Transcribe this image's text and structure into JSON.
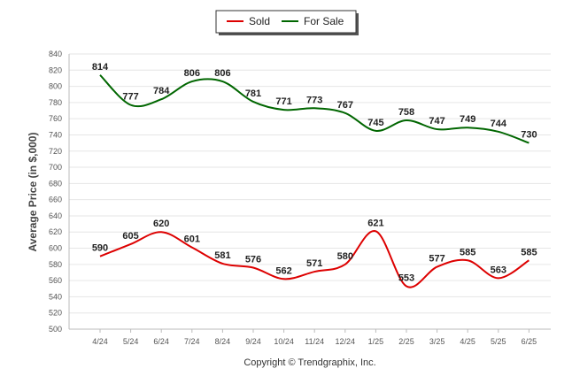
{
  "chart_data": {
    "type": "line",
    "title": "",
    "xlabel": "",
    "ylabel": "Average Price (in $,000)",
    "categories": [
      "4/24",
      "5/24",
      "6/24",
      "7/24",
      "8/24",
      "9/24",
      "10/24",
      "11/24",
      "12/24",
      "1/25",
      "2/25",
      "3/25",
      "4/25",
      "5/25",
      "6/25"
    ],
    "ylim": [
      500,
      840
    ],
    "ytick_step": 20,
    "grid": true,
    "legend_position": "top-center",
    "series": [
      {
        "name": "Sold",
        "color": "#dd0000",
        "values": [
          590,
          605,
          620,
          601,
          581,
          576,
          562,
          571,
          580,
          621,
          553,
          577,
          585,
          563,
          585
        ]
      },
      {
        "name": "For Sale",
        "color": "#006600",
        "values": [
          814,
          777,
          784,
          806,
          806,
          781,
          771,
          773,
          767,
          745,
          758,
          747,
          749,
          744,
          730
        ]
      }
    ]
  },
  "footer": {
    "copyright": "Copyright © Trendgraphix, Inc."
  }
}
